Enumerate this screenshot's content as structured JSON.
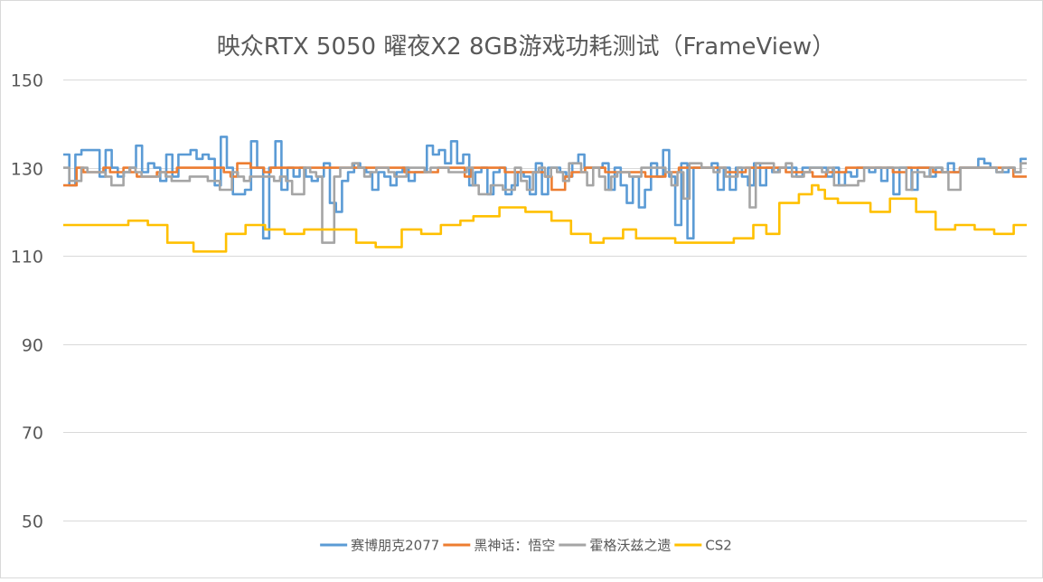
{
  "chart_data": {
    "type": "line",
    "title": "映众RTX 5050 曜夜X2 8GB游戏功耗测试（FrameView）",
    "ylim": [
      50,
      150
    ],
    "yticks": [
      "150",
      "130",
      "110",
      "90",
      "70",
      "50"
    ],
    "grid": true,
    "legend_position": "bottom",
    "line_style": "step",
    "series": [
      {
        "name": "赛博朋克2077",
        "color": "#5b9bd5",
        "values": [
          133,
          126,
          133,
          134,
          134,
          134,
          128,
          134,
          130,
          128,
          129,
          130,
          135,
          129,
          131,
          130,
          127,
          133,
          128,
          133,
          133,
          134,
          132,
          133,
          132,
          126,
          137,
          130,
          124,
          124,
          125,
          136,
          130,
          114,
          130,
          136,
          125,
          130,
          128,
          130,
          128,
          127,
          128,
          131,
          122,
          120,
          127,
          129,
          131,
          130,
          129,
          125,
          129,
          128,
          126,
          129,
          130,
          127,
          129,
          129,
          135,
          133,
          134,
          131,
          136,
          131,
          133,
          126,
          129,
          130,
          124,
          129,
          130,
          124,
          126,
          129,
          128,
          124,
          131,
          124,
          130,
          130,
          129,
          128,
          131,
          133,
          130,
          130,
          130,
          131,
          125,
          130,
          126,
          122,
          128,
          121,
          125,
          131,
          128,
          134,
          128,
          117,
          131,
          114,
          130,
          130,
          130,
          131,
          125,
          130,
          125,
          130,
          128,
          126,
          131,
          126,
          130,
          129,
          130,
          130,
          130,
          128,
          130,
          130,
          130,
          130,
          128,
          130,
          126,
          129,
          128,
          130,
          130,
          129,
          130,
          127,
          130,
          124,
          130,
          130,
          125,
          130,
          130,
          128,
          130,
          129,
          131,
          129,
          130,
          130,
          130,
          132,
          131,
          130,
          129,
          129,
          130,
          129,
          132
        ]
      },
      {
        "name": "黑神话：悟空",
        "color": "#ed7d31",
        "values": [
          126,
          126,
          130,
          129,
          129,
          129,
          130,
          129,
          129,
          130,
          129,
          128,
          128,
          128,
          129,
          129,
          129,
          130,
          130,
          130,
          130,
          130,
          130,
          130,
          129,
          128,
          131,
          131,
          130,
          130,
          129,
          130,
          130,
          130,
          130,
          130,
          130,
          130,
          130,
          130,
          130,
          130,
          130,
          130,
          130,
          130,
          130,
          130,
          130,
          130,
          130,
          129,
          129,
          129,
          129,
          129,
          130,
          130,
          130,
          130,
          128,
          130,
          130,
          130,
          130,
          130,
          129,
          129,
          129,
          129,
          129,
          129,
          128,
          125,
          125,
          128,
          129,
          129,
          130,
          130,
          130,
          129,
          129,
          129,
          129,
          129,
          129,
          128,
          128,
          128,
          129,
          129,
          130,
          130,
          130,
          130,
          130,
          130,
          130,
          129,
          129,
          129,
          130,
          130,
          130,
          130,
          130,
          130,
          129,
          129,
          129,
          129,
          128,
          128,
          129,
          129,
          129,
          130,
          130,
          130,
          130,
          130,
          130,
          130,
          129,
          129,
          130,
          130,
          130,
          130,
          129,
          129,
          129,
          129,
          130,
          130,
          130,
          130,
          130,
          130,
          130,
          130,
          128,
          128
        ]
      },
      {
        "name": "霍格沃兹之遗",
        "color": "#a5a5a5",
        "values": [
          130,
          127,
          127,
          130,
          129,
          129,
          129,
          128,
          126,
          126,
          129,
          130,
          129,
          128,
          128,
          128,
          129,
          128,
          127,
          127,
          127,
          128,
          128,
          128,
          127,
          127,
          125,
          125,
          129,
          128,
          127,
          128,
          128,
          128,
          128,
          127,
          128,
          127,
          124,
          124,
          130,
          129,
          128,
          113,
          113,
          128,
          130,
          130,
          131,
          130,
          128,
          129,
          130,
          130,
          129,
          128,
          128,
          130,
          130,
          130,
          129,
          130,
          130,
          130,
          129,
          129,
          129,
          130,
          126,
          124,
          124,
          126,
          126,
          125,
          125,
          130,
          127,
          125,
          129,
          130,
          128,
          130,
          129,
          127,
          131,
          131,
          129,
          126,
          130,
          128,
          125,
          128,
          129,
          129,
          128,
          128,
          130,
          130,
          130,
          130,
          129,
          126,
          129,
          123,
          131,
          131,
          130,
          130,
          129,
          130,
          128,
          128,
          130,
          130,
          121,
          131,
          131,
          131,
          129,
          130,
          131,
          128,
          128,
          129,
          130,
          130,
          129,
          130,
          126,
          126,
          126,
          126,
          127,
          130,
          130,
          130,
          130,
          130,
          130,
          130,
          125,
          129,
          129,
          128,
          130,
          130,
          129,
          125,
          125,
          130,
          130,
          130,
          130,
          130,
          130,
          129,
          130,
          130,
          129,
          131
        ]
      },
      {
        "name": "CS2",
        "color": "#ffc000",
        "values": [
          117,
          117,
          117,
          117,
          117,
          117,
          117,
          117,
          117,
          117,
          118,
          118,
          118,
          117,
          117,
          117,
          113,
          113,
          113,
          113,
          111,
          111,
          111,
          111,
          111,
          115,
          115,
          115,
          117,
          117,
          117,
          116,
          116,
          116,
          115,
          115,
          115,
          116,
          116,
          116,
          116,
          116,
          116,
          116,
          116,
          113,
          113,
          113,
          112,
          112,
          112,
          112,
          116,
          116,
          116,
          115,
          115,
          115,
          117,
          117,
          117,
          118,
          118,
          119,
          119,
          119,
          119,
          121,
          121,
          121,
          121,
          120,
          120,
          120,
          120,
          118,
          118,
          118,
          115,
          115,
          115,
          113,
          113,
          114,
          114,
          114,
          116,
          116,
          114,
          114,
          114,
          114,
          114,
          114,
          113,
          113,
          113,
          113,
          113,
          113,
          113,
          113,
          113,
          114,
          114,
          114,
          117,
          117,
          115,
          115,
          122,
          122,
          122,
          124,
          124,
          126,
          125,
          123,
          123,
          122,
          122,
          122,
          122,
          122,
          120,
          120,
          120,
          123,
          123,
          123,
          123,
          120,
          120,
          120,
          116,
          116,
          116,
          117,
          117,
          117,
          116,
          116,
          116,
          115,
          115,
          115,
          117,
          117
        ]
      }
    ]
  }
}
